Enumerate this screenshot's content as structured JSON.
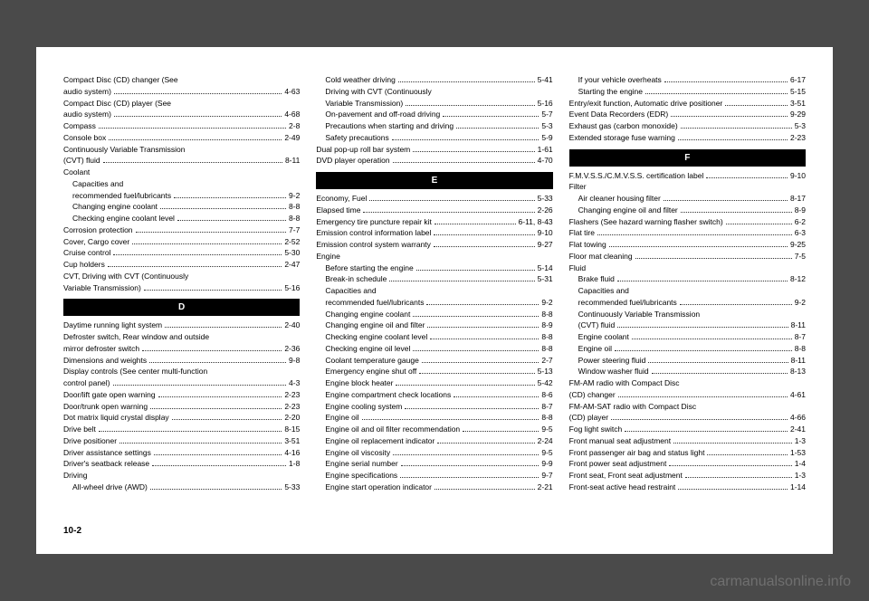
{
  "page_number": "10-2",
  "watermark": "carmanualsonline.info",
  "column1": {
    "entries": [
      {
        "label": "Compact Disc (CD) changer (See",
        "page": "",
        "cont": true
      },
      {
        "label": "audio system)",
        "page": "4-63"
      },
      {
        "label": "Compact Disc (CD) player (See",
        "page": "",
        "cont": true
      },
      {
        "label": "audio system)",
        "page": "4-68"
      },
      {
        "label": "Compass",
        "page": "2-8"
      },
      {
        "label": "Console box",
        "page": "2-49"
      },
      {
        "label": "Continuously Variable Transmission",
        "page": "",
        "cont": true
      },
      {
        "label": "(CVT) fluid",
        "page": "8-11"
      },
      {
        "label": "Coolant",
        "page": "",
        "cont": true
      },
      {
        "label": "Capacities and",
        "page": "",
        "cont": true,
        "indent": 1
      },
      {
        "label": "recommended fuel/lubricants",
        "page": "9-2",
        "indent": 1
      },
      {
        "label": "Changing engine coolant",
        "page": "8-8",
        "indent": 1
      },
      {
        "label": "Checking engine coolant level",
        "page": "8-8",
        "indent": 1
      },
      {
        "label": "Corrosion protection",
        "page": "7-7"
      },
      {
        "label": "Cover, Cargo cover",
        "page": "2-52"
      },
      {
        "label": "Cruise control",
        "page": "5-30"
      },
      {
        "label": "Cup holders",
        "page": "2-47"
      },
      {
        "label": "CVT, Driving with CVT (Continuously",
        "page": "",
        "cont": true
      },
      {
        "label": "Variable Transmission)",
        "page": "5-16"
      }
    ],
    "section_d": "D",
    "entries_d": [
      {
        "label": "Daytime running light system",
        "page": "2-40"
      },
      {
        "label": "Defroster switch, Rear window and outside",
        "page": "",
        "cont": true
      },
      {
        "label": "mirror defroster switch",
        "page": "2-36"
      },
      {
        "label": "Dimensions and weights",
        "page": "9-8"
      },
      {
        "label": "Display controls (See center multi-function",
        "page": "",
        "cont": true
      },
      {
        "label": "control panel)",
        "page": "4-3"
      },
      {
        "label": "Door/lift gate open warning",
        "page": "2-23"
      },
      {
        "label": "Door/trunk open warning",
        "page": "2-23"
      },
      {
        "label": "Dot matrix liquid crystal display",
        "page": "2-20"
      },
      {
        "label": "Drive belt",
        "page": "8-15"
      },
      {
        "label": "Drive positioner",
        "page": "3-51"
      },
      {
        "label": "Driver assistance settings",
        "page": "4-16"
      },
      {
        "label": "Driver's seatback release",
        "page": "1-8"
      },
      {
        "label": "Driving",
        "page": "",
        "cont": true
      },
      {
        "label": "All-wheel drive (AWD)",
        "page": "5-33",
        "indent": 1
      }
    ]
  },
  "column2": {
    "entries": [
      {
        "label": "Cold weather driving",
        "page": "5-41",
        "indent": 1
      },
      {
        "label": "Driving with CVT (Continuously",
        "page": "",
        "cont": true,
        "indent": 1
      },
      {
        "label": "Variable Transmission)",
        "page": "5-16",
        "indent": 1
      },
      {
        "label": "On-pavement and off-road driving",
        "page": "5-7",
        "indent": 1
      },
      {
        "label": "Precautions when starting and driving",
        "page": "5-3",
        "indent": 1
      },
      {
        "label": "Safety precautions",
        "page": "5-9",
        "indent": 1
      },
      {
        "label": "Dual pop-up roll bar system",
        "page": "1-61"
      },
      {
        "label": "DVD player operation",
        "page": "4-70"
      }
    ],
    "section_e": "E",
    "entries_e": [
      {
        "label": "Economy, Fuel",
        "page": "5-33"
      },
      {
        "label": "Elapsed time",
        "page": "2-26"
      },
      {
        "label": "Emergency tire puncture repair kit",
        "page": "6-11, 8-43"
      },
      {
        "label": "Emission control information label",
        "page": "9-10"
      },
      {
        "label": "Emission control system warranty",
        "page": "9-27"
      },
      {
        "label": "Engine",
        "page": "",
        "cont": true
      },
      {
        "label": "Before starting the engine",
        "page": "5-14",
        "indent": 1
      },
      {
        "label": "Break-in schedule",
        "page": "5-31",
        "indent": 1
      },
      {
        "label": "Capacities and",
        "page": "",
        "cont": true,
        "indent": 1
      },
      {
        "label": "recommended fuel/lubricants",
        "page": "9-2",
        "indent": 1
      },
      {
        "label": "Changing engine coolant",
        "page": "8-8",
        "indent": 1
      },
      {
        "label": "Changing engine oil and filter",
        "page": "8-9",
        "indent": 1
      },
      {
        "label": "Checking engine coolant level",
        "page": "8-8",
        "indent": 1
      },
      {
        "label": "Checking engine oil level",
        "page": "8-8",
        "indent": 1
      },
      {
        "label": "Coolant temperature gauge",
        "page": "2-7",
        "indent": 1
      },
      {
        "label": "Emergency engine shut off",
        "page": "5-13",
        "indent": 1
      },
      {
        "label": "Engine block heater",
        "page": "5-42",
        "indent": 1
      },
      {
        "label": "Engine compartment check locations",
        "page": "8-6",
        "indent": 1
      },
      {
        "label": "Engine cooling system",
        "page": "8-7",
        "indent": 1
      },
      {
        "label": "Engine oil",
        "page": "8-8",
        "indent": 1
      },
      {
        "label": "Engine oil and oil filter recommendation",
        "page": "9-5",
        "indent": 1
      },
      {
        "label": "Engine oil replacement indicator",
        "page": "2-24",
        "indent": 1
      },
      {
        "label": "Engine oil viscosity",
        "page": "9-5",
        "indent": 1
      },
      {
        "label": "Engine serial number",
        "page": "9-9",
        "indent": 1
      },
      {
        "label": "Engine specifications",
        "page": "9-7",
        "indent": 1
      },
      {
        "label": "Engine start operation indicator",
        "page": "2-21",
        "indent": 1
      }
    ]
  },
  "column3": {
    "entries": [
      {
        "label": "If your vehicle overheats",
        "page": "6-17",
        "indent": 1
      },
      {
        "label": "Starting the engine",
        "page": "5-15",
        "indent": 1
      },
      {
        "label": "Entry/exit function, Automatic drive positioner",
        "page": "3-51"
      },
      {
        "label": "Event Data Recorders (EDR)",
        "page": "9-29"
      },
      {
        "label": "Exhaust gas (carbon monoxide)",
        "page": "5-3"
      },
      {
        "label": "Extended storage fuse warning",
        "page": "2-23"
      }
    ],
    "section_f": "F",
    "entries_f": [
      {
        "label": "F.M.V.S.S./C.M.V.S.S. certification label",
        "page": "9-10"
      },
      {
        "label": "Filter",
        "page": "",
        "cont": true
      },
      {
        "label": "Air cleaner housing filter",
        "page": "8-17",
        "indent": 1
      },
      {
        "label": "Changing engine oil and filter",
        "page": "8-9",
        "indent": 1
      },
      {
        "label": "Flashers (See hazard warning flasher switch)",
        "page": "6-2"
      },
      {
        "label": "Flat tire",
        "page": "6-3"
      },
      {
        "label": "Flat towing",
        "page": "9-25"
      },
      {
        "label": "Floor mat cleaning",
        "page": "7-5"
      },
      {
        "label": "Fluid",
        "page": "",
        "cont": true
      },
      {
        "label": "Brake fluid",
        "page": "8-12",
        "indent": 1
      },
      {
        "label": "Capacities and",
        "page": "",
        "cont": true,
        "indent": 1
      },
      {
        "label": "recommended fuel/lubricants",
        "page": "9-2",
        "indent": 1
      },
      {
        "label": "Continuously Variable Transmission",
        "page": "",
        "cont": true,
        "indent": 1
      },
      {
        "label": "(CVT) fluid",
        "page": "8-11",
        "indent": 1
      },
      {
        "label": "Engine coolant",
        "page": "8-7",
        "indent": 1
      },
      {
        "label": "Engine oil",
        "page": "8-8",
        "indent": 1
      },
      {
        "label": "Power steering fluid",
        "page": "8-11",
        "indent": 1
      },
      {
        "label": "Window washer fluid",
        "page": "8-13",
        "indent": 1
      },
      {
        "label": "FM-AM radio with Compact Disc",
        "page": "",
        "cont": true
      },
      {
        "label": "(CD) changer",
        "page": "4-61"
      },
      {
        "label": "FM-AM-SAT radio with Compact Disc",
        "page": "",
        "cont": true
      },
      {
        "label": "(CD) player",
        "page": "4-66"
      },
      {
        "label": "Fog light switch",
        "page": "2-41"
      },
      {
        "label": "Front manual seat adjustment",
        "page": "1-3"
      },
      {
        "label": "Front passenger air bag and status light",
        "page": "1-53"
      },
      {
        "label": "Front power seat adjustment",
        "page": "1-4"
      },
      {
        "label": "Front seat, Front seat adjustment",
        "page": "1-3"
      },
      {
        "label": "Front-seat active head restraint",
        "page": "1-14"
      }
    ]
  }
}
